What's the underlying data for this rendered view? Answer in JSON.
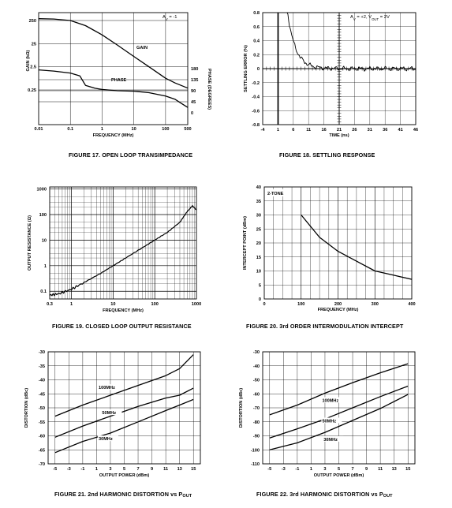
{
  "page": {
    "captions": {
      "fig17": "FIGURE 17.  OPEN LOOP TRANSIMPEDANCE",
      "fig18": "FIGURE 18.  SETTLING RESPONSE",
      "fig19": "FIGURE 19.  CLOSED LOOP OUTPUT RESISTANCE",
      "fig20": "FIGURE 20.  3rd ORDER INTERMODULATION INTERCEPT",
      "fig21": "FIGURE 21.  2nd HARMONIC DISTORTION vs P",
      "fig21_sub": "OUT",
      "fig22": "FIGURE 22.  3rd HARMONIC DISTORTION vs P",
      "fig22_sub": "OUT"
    }
  },
  "chart_data": [
    {
      "id": "fig17",
      "type": "line",
      "xscale": "log",
      "xlim": [
        0.01,
        500
      ],
      "xticks": [
        "0.01",
        "0.1",
        "1",
        "10",
        "100",
        "500"
      ],
      "xtick_values": [
        0.01,
        0.1,
        1,
        10,
        100,
        500
      ],
      "xlabel": "FREQUENCY (MHz)",
      "ylabel": "GAIN (kΩ)",
      "yticks_left": [
        "250",
        "25",
        "2.5",
        "0.25"
      ],
      "ylabel_right": "PHASE (DEGREES)",
      "yticks_right": [
        "180",
        "135",
        "90",
        "45",
        "0"
      ],
      "annotation": "A",
      "annotation_sub": "V",
      "annotation_tail": " = -1",
      "series": [
        {
          "name": "GAIN",
          "x": [
            0.01,
            0.03,
            0.1,
            0.3,
            1,
            3,
            10,
            30,
            100,
            200,
            500
          ],
          "y": [
            300,
            290,
            250,
            150,
            60,
            22,
            7,
            2.5,
            0.8,
            0.5,
            0.3
          ]
        },
        {
          "name": "PHASE",
          "x": [
            0.01,
            0.03,
            0.1,
            0.2,
            0.3,
            0.6,
            1,
            3,
            10,
            30,
            100,
            200,
            300,
            500
          ],
          "y": [
            175,
            170,
            162,
            150,
            112,
            100,
            95,
            90,
            88,
            82,
            68,
            55,
            40,
            22
          ]
        }
      ],
      "grid": true
    },
    {
      "id": "fig18",
      "type": "line",
      "xlim": [
        -4,
        46
      ],
      "xticks": [
        "-4",
        "1",
        "6",
        "11",
        "16",
        "21",
        "26",
        "31",
        "36",
        "41",
        "46"
      ],
      "xtick_values": [
        -4,
        1,
        6,
        11,
        16,
        21,
        26,
        31,
        36,
        41,
        46
      ],
      "xlabel": "TIME (ns)",
      "ylabel": "SETTLING ERROR (%)",
      "ylim": [
        -0.8,
        0.8
      ],
      "yticks": [
        "0.8",
        "0.6",
        "0.4",
        "0.2",
        "0",
        "-0.2",
        "-0.4",
        "-0.6",
        "-0.8"
      ],
      "ytick_values": [
        0.8,
        0.6,
        0.4,
        0.2,
        0,
        -0.2,
        -0.4,
        -0.6,
        -0.8
      ],
      "annotation": "A",
      "annotation_sub": "V",
      "annotation_mid": " = +2, V",
      "annotation_sub2": "OUT",
      "annotation_tail": " = 2V",
      "series": [
        {
          "name": "",
          "x": [
            0.95,
            1.05,
            1.3,
            3,
            5,
            7,
            9,
            11,
            13,
            16,
            21,
            26,
            31,
            36,
            41,
            46
          ],
          "y": [
            0.8,
            -0.8,
            0.0,
            0.0,
            0.75,
            0.35,
            0.18,
            0.1,
            0.05,
            0.03,
            0.02,
            0.0,
            0.01,
            0.0,
            -0.01,
            0.0
          ]
        }
      ],
      "grid": true
    },
    {
      "id": "fig19",
      "type": "line",
      "xscale": "log",
      "yscale": "log",
      "xlim": [
        0.3,
        1000
      ],
      "xticks": [
        "0.3",
        "1",
        "10",
        "100",
        "1000"
      ],
      "xtick_values": [
        0.3,
        1,
        10,
        100,
        1000
      ],
      "xlabel": "FREQUENCY (MHz)",
      "ylabel": "OUTPUT RESISTANCE (Ω)",
      "ylim": [
        0.05,
        1200
      ],
      "yticks": [
        "1000",
        "100",
        "10",
        "1",
        "0.1"
      ],
      "ytick_values": [
        1000,
        100,
        10,
        1,
        0.1
      ],
      "series": [
        {
          "name": "",
          "x": [
            0.3,
            0.5,
            1,
            2,
            5,
            10,
            20,
            50,
            100,
            200,
            400,
            600,
            800,
            1000
          ],
          "y": [
            0.07,
            0.08,
            0.12,
            0.22,
            0.5,
            1.0,
            2.0,
            5.0,
            10,
            20,
            50,
            130,
            220,
            150
          ]
        }
      ],
      "grid": true
    },
    {
      "id": "fig20",
      "type": "line",
      "xlim": [
        0,
        400
      ],
      "xticks": [
        "0",
        "100",
        "200",
        "300",
        "400"
      ],
      "xtick_values": [
        0,
        100,
        200,
        300,
        400
      ],
      "xlabel": "FREQUENCY (MHz)",
      "ylabel": "INTERCEPT POINT (dBm)",
      "ylim": [
        0,
        40
      ],
      "yticks": [
        "40",
        "35",
        "30",
        "25",
        "20",
        "15",
        "10",
        "5",
        "0"
      ],
      "ytick_values": [
        40,
        35,
        30,
        25,
        20,
        15,
        10,
        5,
        0
      ],
      "annotation": "2-TONE",
      "series": [
        {
          "name": "",
          "x": [
            100,
            150,
            200,
            250,
            300,
            350,
            400
          ],
          "y": [
            30,
            22,
            17,
            13.5,
            10,
            8.5,
            7
          ]
        }
      ],
      "grid": true
    },
    {
      "id": "fig21",
      "type": "line",
      "xlim": [
        -6,
        16
      ],
      "xticks": [
        "-5",
        "-3",
        "-1",
        "1",
        "3",
        "5",
        "7",
        "9",
        "11",
        "13",
        "15"
      ],
      "xtick_values": [
        -5,
        -3,
        -1,
        1,
        3,
        5,
        7,
        9,
        11,
        13,
        15
      ],
      "xlabel": "OUTPUT POWER (dBm)",
      "ylabel": "DISTORTION (dBc)",
      "ylim": [
        -70,
        -30
      ],
      "yticks": [
        "-30",
        "-35",
        "-40",
        "-45",
        "-50",
        "-55",
        "-60",
        "-65",
        "-70"
      ],
      "ytick_values": [
        -30,
        -35,
        -40,
        -45,
        -50,
        -55,
        -60,
        -65,
        -70
      ],
      "series": [
        {
          "name": "100MHz",
          "x": [
            -5,
            -1,
            3,
            7,
            11,
            13,
            15
          ],
          "y": [
            -53,
            -49,
            -45.5,
            -42,
            -38.5,
            -36,
            -31
          ]
        },
        {
          "name": "50MHz",
          "x": [
            -5,
            -1,
            3,
            7,
            11,
            13,
            15
          ],
          "y": [
            -60.5,
            -56.5,
            -53,
            -49.5,
            -46.5,
            -45.5,
            -43
          ]
        },
        {
          "name": "30MHz",
          "x": [
            -5,
            -1,
            3,
            7,
            11,
            13,
            15
          ],
          "y": [
            -66,
            -62,
            -59,
            -55,
            -51,
            -49,
            -47
          ]
        }
      ],
      "grid": true
    },
    {
      "id": "fig22",
      "type": "line",
      "xlim": [
        -6,
        16
      ],
      "xticks": [
        "-5",
        "-3",
        "-1",
        "1",
        "3",
        "5",
        "7",
        "9",
        "11",
        "13",
        "15"
      ],
      "xtick_values": [
        -5,
        -3,
        -1,
        1,
        3,
        5,
        7,
        9,
        11,
        13,
        15
      ],
      "xlabel": "OUTPUT POWER (dBm)",
      "ylabel": "DISTORTION (dBc)",
      "ylim": [
        -110,
        -30
      ],
      "yticks": [
        "-30",
        "-40",
        "-50",
        "-60",
        "-70",
        "-80",
        "-90",
        "-100",
        "-110"
      ],
      "ytick_values": [
        -30,
        -40,
        -50,
        -60,
        -70,
        -80,
        -90,
        -100,
        -110
      ],
      "series": [
        {
          "name": "100MHz",
          "x": [
            -5,
            -1,
            3,
            7,
            11,
            15
          ],
          "y": [
            -75,
            -68,
            -59.5,
            -52,
            -45,
            -38.5
          ]
        },
        {
          "name": "50MHz",
          "x": [
            -5,
            -1,
            3,
            7,
            11,
            15
          ],
          "y": [
            -91.5,
            -85,
            -78,
            -70,
            -62,
            -54.5
          ]
        },
        {
          "name": "30MHz",
          "x": [
            -5,
            -1,
            3,
            7,
            11,
            15
          ],
          "y": [
            -100,
            -95,
            -87.5,
            -79,
            -70.5,
            -60.5
          ]
        }
      ],
      "grid": true
    }
  ]
}
